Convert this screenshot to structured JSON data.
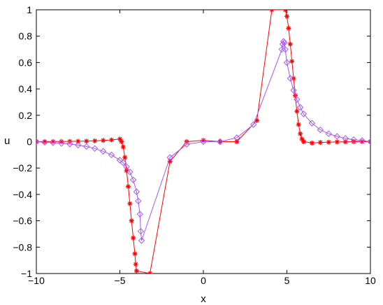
{
  "chart_data": {
    "type": "line",
    "title": "",
    "xlabel": "x",
    "ylabel": "u",
    "xlim": [
      -10,
      10
    ],
    "ylim": [
      -1,
      1
    ],
    "xticks": [
      -10,
      -5,
      0,
      5,
      10
    ],
    "yticks": [
      -1,
      -0.8,
      -0.6,
      -0.4,
      -0.2,
      0,
      0.2,
      0.4,
      0.6,
      0.8,
      1
    ],
    "xtick_labels": [
      "−10",
      "−5",
      "0",
      "5",
      "10"
    ],
    "ytick_labels": [
      "−1",
      "−0.8",
      "−0.6",
      "−0.4",
      "−0.2",
      "0",
      "0.2",
      "0.4",
      "0.6",
      "0.8",
      "1"
    ],
    "grid": false,
    "legend": "none",
    "series": [
      {
        "color": "#ff0000",
        "marker": "asterisk",
        "line": true,
        "x": [
          -10,
          -9.5,
          -9,
          -8.5,
          -8,
          -7.5,
          -7,
          -6.5,
          -6,
          -5.5,
          -5,
          -4.9,
          -4.8,
          -4.7,
          -4.6,
          -4.5,
          -4.4,
          -4.3,
          -4.2,
          -4.1,
          -4.05,
          -4.0,
          -3.2,
          -2,
          -1,
          0,
          1,
          2,
          3.2,
          4.1,
          4.9,
          5.0,
          5.1,
          5.2,
          5.3,
          5.4,
          5.5,
          5.6,
          5.7,
          5.8,
          5.9,
          6.0,
          6.5,
          7,
          7.5,
          8,
          8.5,
          9,
          9.5,
          10
        ],
        "y": [
          0.0,
          0.0,
          0.001,
          0.001,
          0.002,
          0.003,
          0.004,
          0.006,
          0.009,
          0.013,
          0.02,
          0.0,
          -0.04,
          -0.12,
          -0.22,
          -0.34,
          -0.47,
          -0.6,
          -0.73,
          -0.85,
          -0.93,
          -0.98,
          -1.0,
          -0.15,
          0.0,
          0.01,
          0.0,
          0.0,
          0.16,
          1.0,
          1.0,
          0.95,
          0.86,
          0.74,
          0.61,
          0.48,
          0.35,
          0.23,
          0.13,
          0.06,
          0.02,
          0.0,
          -0.01,
          -0.006,
          -0.004,
          -0.002,
          -0.001,
          0.0,
          0.0,
          0.0
        ]
      },
      {
        "color": "#a855f7",
        "marker": "diamond",
        "line": true,
        "x": [
          -10,
          -9.5,
          -9,
          -8.5,
          -8,
          -7.5,
          -7,
          -6.5,
          -6,
          -5.5,
          -5,
          -4.8,
          -4.6,
          -4.4,
          -4.2,
          -4.0,
          -3.9,
          -3.8,
          -3.75,
          -3.7,
          -2,
          -1,
          0,
          1,
          2,
          3,
          4.7,
          4.75,
          4.8,
          4.85,
          4.9,
          5.0,
          5.2,
          5.4,
          5.6,
          5.8,
          6.0,
          6.5,
          7,
          7.5,
          8,
          8.5,
          9,
          9.5,
          10
        ],
        "y": [
          0.0,
          -0.005,
          -0.008,
          -0.012,
          -0.018,
          -0.026,
          -0.037,
          -0.052,
          -0.073,
          -0.1,
          -0.14,
          -0.16,
          -0.19,
          -0.23,
          -0.29,
          -0.38,
          -0.45,
          -0.55,
          -0.68,
          -0.75,
          -0.12,
          -0.02,
          0.0,
          0.0,
          0.03,
          0.13,
          0.7,
          0.74,
          0.76,
          0.75,
          0.7,
          0.6,
          0.48,
          0.39,
          0.32,
          0.26,
          0.21,
          0.14,
          0.09,
          0.06,
          0.04,
          0.025,
          0.015,
          0.008,
          0.0
        ]
      }
    ]
  }
}
